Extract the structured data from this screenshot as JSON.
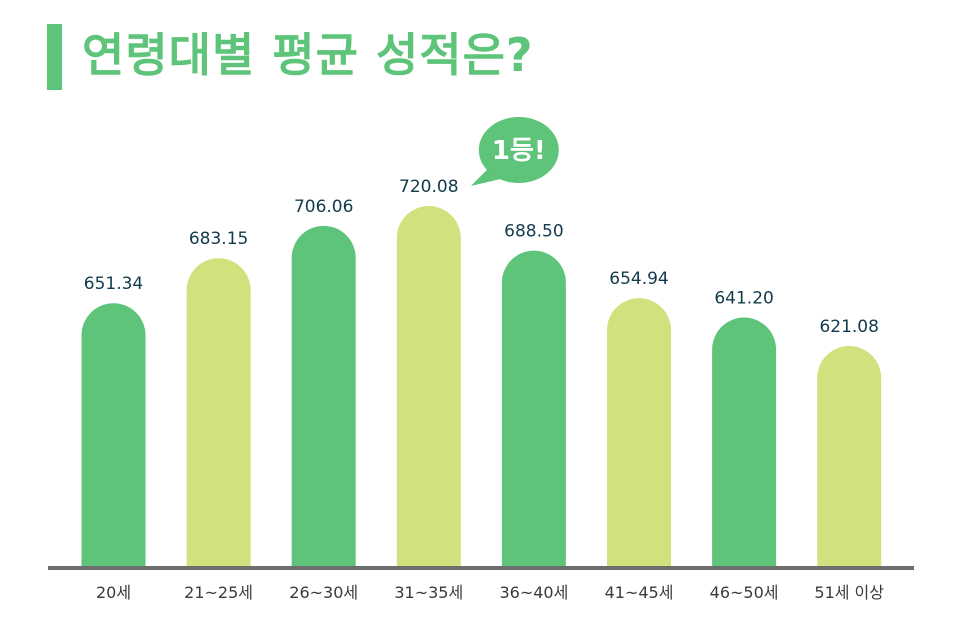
{
  "title": "연령대별 평균 성적은?",
  "badge": "1등!",
  "colors": {
    "dark": "#5dc47a",
    "light": "#d3e07e",
    "axis": "#6d6d6d",
    "badge": "#5dc47a"
  },
  "chart_data": {
    "type": "bar",
    "title": "연령대별 평균 성적은?",
    "categories": [
      "20세",
      "21~25세",
      "26~30세",
      "31~35세",
      "36~40세",
      "41~45세",
      "46~50세",
      "51세 이상"
    ],
    "values": [
      651.34,
      683.15,
      706.06,
      720.08,
      688.5,
      654.94,
      641.2,
      621.08
    ],
    "value_labels": [
      "651.34",
      "683.15",
      "706.06",
      "720.08",
      "688.50",
      "654.94",
      "641.20",
      "621.08"
    ],
    "bar_colors": [
      "dark",
      "light",
      "dark",
      "light",
      "dark",
      "light",
      "dark",
      "light"
    ],
    "highlight_index": 3,
    "grid": false,
    "xlabel": "",
    "ylabel": ""
  }
}
